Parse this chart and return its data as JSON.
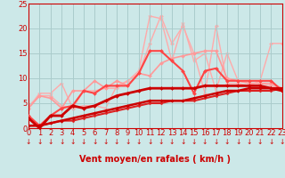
{
  "xlabel": "Vent moyen/en rafales ( km/h )",
  "xlim": [
    0,
    23
  ],
  "ylim": [
    0,
    25
  ],
  "yticks": [
    0,
    5,
    10,
    15,
    20,
    25
  ],
  "xticks": [
    0,
    1,
    2,
    3,
    4,
    5,
    6,
    7,
    8,
    9,
    10,
    11,
    12,
    13,
    14,
    15,
    16,
    17,
    18,
    19,
    20,
    21,
    22,
    23
  ],
  "bg_color": "#cce8e8",
  "grid_color": "#aacccc",
  "series": [
    {
      "x": [
        0,
        1,
        2,
        3,
        4,
        5,
        6,
        7,
        8,
        9,
        10,
        11,
        12,
        13,
        14,
        15,
        16,
        17,
        18,
        19,
        20,
        21,
        22,
        23
      ],
      "y": [
        4.5,
        6.5,
        6.5,
        4.5,
        4.0,
        7.5,
        7.5,
        8.0,
        8.0,
        9.5,
        11.0,
        17.0,
        22.5,
        17.0,
        20.5,
        15.0,
        7.0,
        20.5,
        9.0,
        9.0,
        8.5,
        9.5,
        17.0,
        17.0
      ],
      "color": "#ffaaaa",
      "lw": 1.0,
      "marker": "D",
      "ms": 2.0,
      "zorder": 1
    },
    {
      "x": [
        0,
        1,
        2,
        3,
        4,
        5,
        6,
        7,
        8,
        9,
        10,
        11,
        12,
        13,
        14,
        15,
        16,
        17,
        18,
        19,
        20,
        21,
        22,
        23
      ],
      "y": [
        4.0,
        7.0,
        7.0,
        9.0,
        4.0,
        4.5,
        4.5,
        4.0,
        8.5,
        9.5,
        11.5,
        22.5,
        22.0,
        13.5,
        21.0,
        13.5,
        15.0,
        7.5,
        15.0,
        9.5,
        9.0,
        9.0,
        8.5,
        8.0
      ],
      "color": "#ffaaaa",
      "lw": 1.0,
      "marker": "*",
      "ms": 3.0,
      "zorder": 1
    },
    {
      "x": [
        0,
        1,
        2,
        3,
        4,
        5,
        6,
        7,
        8,
        9,
        10,
        11,
        12,
        13,
        14,
        15,
        16,
        17,
        18,
        19,
        20,
        21,
        22,
        23
      ],
      "y": [
        4.0,
        6.5,
        6.0,
        4.0,
        7.5,
        7.5,
        9.5,
        8.0,
        9.5,
        8.5,
        11.0,
        10.5,
        13.0,
        14.0,
        14.5,
        15.0,
        15.5,
        15.5,
        10.0,
        9.5,
        9.0,
        9.0,
        9.0,
        8.0
      ],
      "color": "#ff9999",
      "lw": 1.2,
      "marker": "D",
      "ms": 2.0,
      "zorder": 2
    },
    {
      "x": [
        0,
        1,
        2,
        3,
        4,
        5,
        6,
        7,
        8,
        9,
        10,
        11,
        12,
        13,
        14,
        15,
        16,
        17,
        18,
        19,
        20,
        21,
        22,
        23
      ],
      "y": [
        2.5,
        0.5,
        2.5,
        4.0,
        4.5,
        7.5,
        7.0,
        8.5,
        8.5,
        8.5,
        11.0,
        15.5,
        15.5,
        13.5,
        11.5,
        7.0,
        11.5,
        12.0,
        9.5,
        9.5,
        9.5,
        9.5,
        9.5,
        7.5
      ],
      "color": "#ff4444",
      "lw": 1.5,
      "marker": "D",
      "ms": 2.0,
      "zorder": 3
    },
    {
      "x": [
        0,
        1,
        2,
        3,
        4,
        5,
        6,
        7,
        8,
        9,
        10,
        11,
        12,
        13,
        14,
        15,
        16,
        17,
        18,
        19,
        20,
        21,
        22,
        23
      ],
      "y": [
        2.0,
        0.0,
        2.5,
        2.5,
        4.5,
        4.0,
        4.5,
        5.5,
        6.5,
        7.0,
        7.5,
        8.0,
        8.0,
        8.0,
        8.0,
        8.0,
        8.5,
        8.5,
        8.5,
        8.5,
        8.5,
        8.5,
        8.0,
        7.5
      ],
      "color": "#cc0000",
      "lw": 2.0,
      "marker": "D",
      "ms": 2.0,
      "zorder": 4
    },
    {
      "x": [
        0,
        1,
        2,
        3,
        4,
        5,
        6,
        7,
        8,
        9,
        10,
        11,
        12,
        13,
        14,
        15,
        16,
        17,
        18,
        19,
        20,
        21,
        22,
        23
      ],
      "y": [
        0.5,
        0.5,
        1.0,
        1.5,
        2.0,
        2.5,
        3.0,
        3.5,
        4.0,
        4.5,
        5.0,
        5.5,
        5.5,
        5.5,
        5.5,
        6.0,
        6.5,
        7.0,
        7.5,
        7.5,
        8.0,
        8.0,
        8.0,
        8.0
      ],
      "color": "#cc0000",
      "lw": 1.8,
      "marker": "D",
      "ms": 1.8,
      "zorder": 4
    },
    {
      "x": [
        0,
        1,
        2,
        3,
        4,
        5,
        6,
        7,
        8,
        9,
        10,
        11,
        12,
        13,
        14,
        15,
        16,
        17,
        18,
        19,
        20,
        21,
        22,
        23
      ],
      "y": [
        0.5,
        0.5,
        1.0,
        1.5,
        1.5,
        2.0,
        2.5,
        3.0,
        3.5,
        4.0,
        4.5,
        5.0,
        5.0,
        5.5,
        5.5,
        5.5,
        6.0,
        6.5,
        7.0,
        7.5,
        7.5,
        7.5,
        7.5,
        8.0
      ],
      "color": "#dd2222",
      "lw": 1.5,
      "marker": "D",
      "ms": 1.5,
      "zorder": 3
    }
  ],
  "arrow_color": "#cc0000",
  "xlabel_fontsize": 7,
  "tick_fontsize": 6,
  "ytick_fontsize": 6
}
